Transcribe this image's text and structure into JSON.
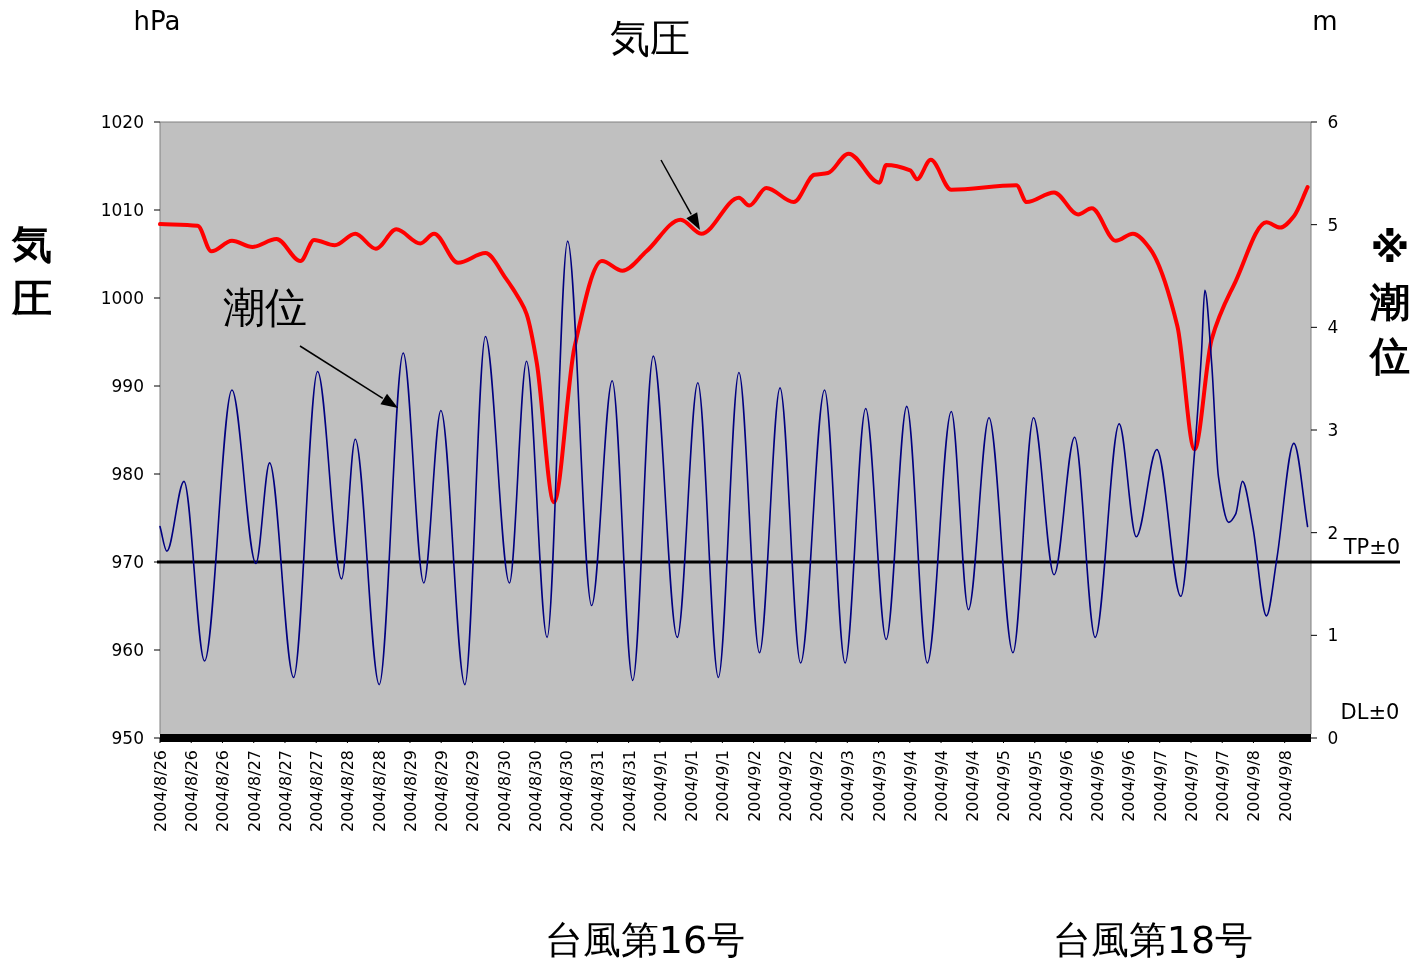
{
  "chart_data": {
    "type": "line",
    "title": "気圧",
    "ylabel": "気圧",
    "y2label": "※潮位",
    "annotations": [
      "hPa",
      "m",
      "潮位",
      "台風第16号",
      "台風第18号",
      "DL±0"
    ],
    "xlim": [
      "2004-08-26T00:00",
      "2004-09-09T00:00"
    ],
    "xticks": [
      {
        "value": "2004-08-26T00:00",
        "label": "2004/8/26"
      },
      {
        "value": "2004-08-26T09:07",
        "label": "2004/8/26"
      },
      {
        "value": "2004-08-26T18:14",
        "label": "2004/8/26"
      },
      {
        "value": "2004-08-27T03:22",
        "label": "2004/8/27"
      },
      {
        "value": "2004-08-27T12:29",
        "label": "2004/8/27"
      },
      {
        "value": "2004-08-27T21:36",
        "label": "2004/8/27"
      },
      {
        "value": "2004-08-28T06:43",
        "label": "2004/8/28"
      },
      {
        "value": "2004-08-28T15:50",
        "label": "2004/8/28"
      },
      {
        "value": "2004-08-29T00:58",
        "label": "2004/8/29"
      },
      {
        "value": "2004-08-29T10:05",
        "label": "2004/8/29"
      },
      {
        "value": "2004-08-29T19:12",
        "label": "2004/8/29"
      },
      {
        "value": "2004-08-30T04:19",
        "label": "2004/8/30"
      },
      {
        "value": "2004-08-30T13:26",
        "label": "2004/8/30"
      },
      {
        "value": "2004-08-30T22:34",
        "label": "2004/8/30"
      },
      {
        "value": "2004-08-31T07:41",
        "label": "2004/8/31"
      },
      {
        "value": "2004-08-31T16:48",
        "label": "2004/8/31"
      },
      {
        "value": "2004-09-01T01:55",
        "label": "2004/9/1"
      },
      {
        "value": "2004-09-01T11:02",
        "label": "2004/9/1"
      },
      {
        "value": "2004-09-01T20:10",
        "label": "2004/9/1"
      },
      {
        "value": "2004-09-02T05:17",
        "label": "2004/9/2"
      },
      {
        "value": "2004-09-02T14:24",
        "label": "2004/9/2"
      },
      {
        "value": "2004-09-02T23:31",
        "label": "2004/9/2"
      },
      {
        "value": "2004-09-03T08:38",
        "label": "2004/9/3"
      },
      {
        "value": "2004-09-03T17:46",
        "label": "2004/9/3"
      },
      {
        "value": "2004-09-04T02:53",
        "label": "2004/9/4"
      },
      {
        "value": "2004-09-04T12:00",
        "label": "2004/9/4"
      },
      {
        "value": "2004-09-04T21:07",
        "label": "2004/9/4"
      },
      {
        "value": "2004-09-05T06:14",
        "label": "2004/9/5"
      },
      {
        "value": "2004-09-05T15:22",
        "label": "2004/9/5"
      },
      {
        "value": "2004-09-06T00:29",
        "label": "2004/9/6"
      },
      {
        "value": "2004-09-06T09:36",
        "label": "2004/9/6"
      },
      {
        "value": "2004-09-06T18:43",
        "label": "2004/9/6"
      },
      {
        "value": "2004-09-07T03:50",
        "label": "2004/9/7"
      },
      {
        "value": "2004-09-07T12:58",
        "label": "2004/9/7"
      },
      {
        "value": "2004-09-07T22:05",
        "label": "2004/9/7"
      },
      {
        "value": "2004-09-08T07:12",
        "label": "2004/9/8"
      },
      {
        "value": "2004-09-08T16:19",
        "label": "2004/9/8"
      }
    ],
    "ylim": [
      950,
      1020
    ],
    "yticks": [
      950,
      960,
      970,
      980,
      990,
      1000,
      1010,
      1020
    ],
    "y2lim": [
      0,
      6
    ],
    "y2ticks": [
      0,
      1,
      2,
      3,
      4,
      5,
      6
    ],
    "line_style": "solid",
    "ref_lines": [
      {
        "axis": "y",
        "value": 970,
        "label": "TP±0",
        "color": "#000000"
      }
    ],
    "series": [
      {
        "color": "#ff0000",
        "axis": "y",
        "x": [
          "2004-08-26T00:00",
          "2004-08-26T11:00",
          "2004-08-26T15:00",
          "2004-08-26T21:00",
          "2004-08-27T03:00",
          "2004-08-27T10:00",
          "2004-08-27T17:00",
          "2004-08-27T21:00",
          "2004-08-28T03:00",
          "2004-08-28T09:00",
          "2004-08-28T15:00",
          "2004-08-28T21:00",
          "2004-08-29T04:00",
          "2004-08-29T08:00",
          "2004-08-29T15:00",
          "2004-08-29T23:00",
          "2004-08-30T05:00",
          "2004-08-30T09:00",
          "2004-08-30T11:00",
          "2004-08-30T14:00",
          "2004-08-30T19:00",
          "2004-08-31T01:00",
          "2004-08-31T09:00",
          "2004-08-31T15:00",
          "2004-08-31T22:00",
          "2004-09-01T08:00",
          "2004-09-01T14:00",
          "2004-09-02T01:00",
          "2004-09-02T04:00",
          "2004-09-02T09:00",
          "2004-09-02T17:00",
          "2004-09-02T23:00",
          "2004-09-03T03:00",
          "2004-09-03T09:00",
          "2004-09-03T18:00",
          "2004-09-03T20:00",
          "2004-09-04T03:00",
          "2004-09-04T05:00",
          "2004-09-04T09:00",
          "2004-09-04T15:00",
          "2004-09-05T10:00",
          "2004-09-05T13:00",
          "2004-09-05T21:00",
          "2004-09-06T04:00",
          "2004-09-06T08:00",
          "2004-09-06T15:00",
          "2004-09-06T20:00",
          "2004-09-07T01:00",
          "2004-09-07T09:00",
          "2004-09-07T14:00",
          "2004-09-07T19:00",
          "2004-09-08T02:00",
          "2004-09-08T11:00",
          "2004-09-08T15:00",
          "2004-09-08T19:00",
          "2004-09-08T23:00"
        ],
        "values": [
          1008.4,
          1008.2,
          1005.3,
          1006.5,
          1005.8,
          1006.7,
          1004.2,
          1006.6,
          1006.0,
          1007.3,
          1005.6,
          1007.8,
          1006.2,
          1007.3,
          1004.0,
          1005.1,
          1002.2,
          999.8,
          998.2,
          992.6,
          976.8,
          994.4,
          1004.2,
          1003.1,
          1005.3,
          1008.9,
          1007.3,
          1011.4,
          1010.5,
          1012.5,
          1010.9,
          1014.0,
          1014.2,
          1016.4,
          1013.1,
          1015.1,
          1014.5,
          1013.5,
          1015.7,
          1012.3,
          1012.8,
          1010.9,
          1012.0,
          1009.5,
          1010.2,
          1006.5,
          1007.3,
          1005.6,
          996.8,
          982.8,
          995.3,
          1001.9,
          1008.6,
          1008.0,
          1009.3,
          1012.6
        ]
      },
      {
        "color": "#000080",
        "axis": "y2",
        "x": [
          "2004-08-26T00:00",
          "2004-08-26T02:00",
          "2004-08-26T07:00",
          "2004-08-26T13:00",
          "2004-08-26T21:00",
          "2004-08-27T04:00",
          "2004-08-27T08:00",
          "2004-08-27T15:00",
          "2004-08-27T22:00",
          "2004-08-28T05:00",
          "2004-08-28T09:00",
          "2004-08-28T16:00",
          "2004-08-28T23:00",
          "2004-08-29T05:00",
          "2004-08-29T10:00",
          "2004-08-29T17:00",
          "2004-08-29T23:00",
          "2004-08-30T06:00",
          "2004-08-30T11:00",
          "2004-08-30T17:00",
          "2004-08-30T23:00",
          "2004-08-31T06:00",
          "2004-08-31T12:00",
          "2004-08-31T18:00",
          "2004-09-01T00:00",
          "2004-09-01T07:00",
          "2004-09-01T13:00",
          "2004-09-01T19:00",
          "2004-09-02T01:00",
          "2004-09-02T07:00",
          "2004-09-02T13:00",
          "2004-09-02T19:00",
          "2004-09-03T02:00",
          "2004-09-03T08:00",
          "2004-09-03T14:00",
          "2004-09-03T20:00",
          "2004-09-04T02:00",
          "2004-09-04T08:00",
          "2004-09-04T15:00",
          "2004-09-04T20:00",
          "2004-09-05T02:00",
          "2004-09-05T09:00",
          "2004-09-05T15:00",
          "2004-09-05T21:00",
          "2004-09-06T03:00",
          "2004-09-06T09:00",
          "2004-09-06T16:00",
          "2004-09-06T21:00",
          "2004-09-07T03:00",
          "2004-09-07T10:00",
          "2004-09-07T14:00",
          "2004-09-07T16:00",
          "2004-09-07T17:00",
          "2004-09-07T19:00",
          "2004-09-07T21:00",
          "2004-09-08T00:00",
          "2004-09-08T02:00",
          "2004-09-08T04:00",
          "2004-09-08T07:00",
          "2004-09-08T11:00",
          "2004-09-08T14:00",
          "2004-09-08T19:00",
          "2004-09-08T23:00"
        ],
        "values": [
          2.06,
          1.82,
          2.5,
          0.75,
          3.39,
          1.7,
          2.68,
          0.59,
          3.57,
          1.55,
          2.91,
          0.52,
          3.75,
          1.51,
          3.19,
          0.52,
          3.91,
          1.51,
          3.67,
          0.98,
          4.84,
          1.29,
          3.48,
          0.56,
          3.72,
          0.98,
          3.46,
          0.59,
          3.56,
          0.83,
          3.41,
          0.73,
          3.39,
          0.73,
          3.21,
          0.96,
          3.23,
          0.73,
          3.18,
          1.25,
          3.12,
          0.83,
          3.12,
          1.59,
          2.93,
          0.98,
          3.06,
          1.96,
          2.81,
          1.38,
          2.78,
          3.73,
          4.36,
          3.65,
          2.54,
          2.1,
          2.18,
          2.5,
          2.06,
          1.19,
          1.74,
          2.87,
          2.06
        ]
      }
    ]
  }
}
